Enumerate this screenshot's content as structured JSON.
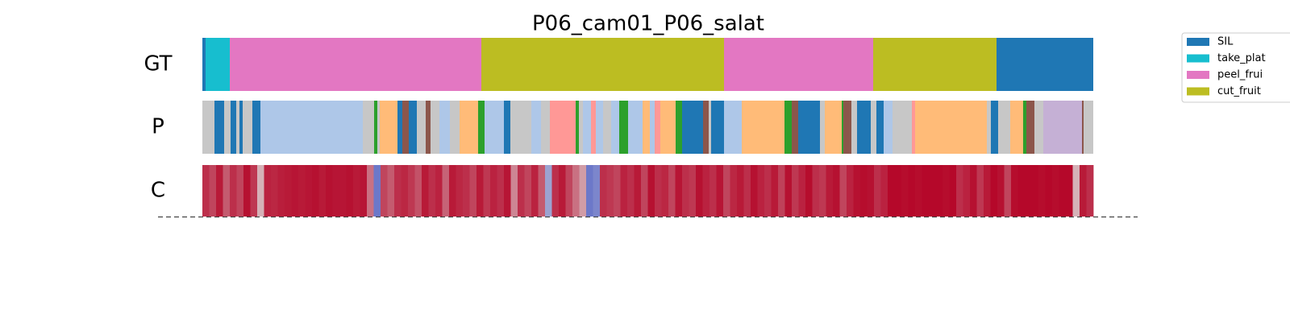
{
  "chart_data": {
    "type": "segmentation",
    "title": "P06_cam01_P06_salat",
    "xlim": [
      0,
      1105
    ],
    "colormap": [
      "#3b4cc0",
      "#dddddd",
      "#b40426"
    ],
    "legend": [
      {
        "name": "SIL",
        "color": "#1f77b4"
      },
      {
        "name": "take_plat",
        "color": "#17becf"
      },
      {
        "name": "peel_frui",
        "color": "#e377c2"
      },
      {
        "name": "cut_fruit",
        "color": "#bcbd22"
      }
    ],
    "rows": [
      {
        "label": "GT",
        "segments": [
          {
            "start": 0,
            "end": 4,
            "color": "#1f77b4"
          },
          {
            "start": 4,
            "end": 34,
            "color": "#17becf"
          },
          {
            "start": 34,
            "end": 346,
            "color": "#e377c2"
          },
          {
            "start": 346,
            "end": 647,
            "color": "#bcbd22"
          },
          {
            "start": 647,
            "end": 832,
            "color": "#e377c2"
          },
          {
            "start": 832,
            "end": 985,
            "color": "#bcbd22"
          },
          {
            "start": 985,
            "end": 1105,
            "color": "#1f77b4"
          }
        ]
      },
      {
        "label": "P",
        "segments": [
          {
            "start": 0,
            "end": 15,
            "color": "#c7c7c7"
          },
          {
            "start": 15,
            "end": 27,
            "color": "#1f77b4"
          },
          {
            "start": 27,
            "end": 35,
            "color": "#c7c7c7"
          },
          {
            "start": 35,
            "end": 42,
            "color": "#1f77b4"
          },
          {
            "start": 42,
            "end": 46,
            "color": "#c7c7c7"
          },
          {
            "start": 46,
            "end": 50,
            "color": "#1f77b4"
          },
          {
            "start": 50,
            "end": 62,
            "color": "#c7c7c7"
          },
          {
            "start": 62,
            "end": 72,
            "color": "#1f77b4"
          },
          {
            "start": 72,
            "end": 199,
            "color": "#aec7e8"
          },
          {
            "start": 199,
            "end": 213,
            "color": "#c7c7c7"
          },
          {
            "start": 213,
            "end": 217,
            "color": "#2ca02c"
          },
          {
            "start": 217,
            "end": 220,
            "color": "#c7c7c7"
          },
          {
            "start": 220,
            "end": 242,
            "color": "#ffbb78"
          },
          {
            "start": 242,
            "end": 248,
            "color": "#1f77b4"
          },
          {
            "start": 248,
            "end": 256,
            "color": "#8c564b"
          },
          {
            "start": 256,
            "end": 266,
            "color": "#1f77b4"
          },
          {
            "start": 266,
            "end": 277,
            "color": "#c7c7c7"
          },
          {
            "start": 277,
            "end": 283,
            "color": "#8c564b"
          },
          {
            "start": 283,
            "end": 294,
            "color": "#c7c7c7"
          },
          {
            "start": 294,
            "end": 307,
            "color": "#aec7e8"
          },
          {
            "start": 307,
            "end": 319,
            "color": "#c7c7c7"
          },
          {
            "start": 319,
            "end": 342,
            "color": "#ffbb78"
          },
          {
            "start": 342,
            "end": 350,
            "color": "#2ca02c"
          },
          {
            "start": 350,
            "end": 374,
            "color": "#aec7e8"
          },
          {
            "start": 374,
            "end": 382,
            "color": "#1f77b4"
          },
          {
            "start": 382,
            "end": 408,
            "color": "#c7c7c7"
          },
          {
            "start": 408,
            "end": 420,
            "color": "#aec7e8"
          },
          {
            "start": 420,
            "end": 431,
            "color": "#c7c7c7"
          },
          {
            "start": 431,
            "end": 463,
            "color": "#ff9896"
          },
          {
            "start": 463,
            "end": 467,
            "color": "#2ca02c"
          },
          {
            "start": 467,
            "end": 472,
            "color": "#c7c7c7"
          },
          {
            "start": 472,
            "end": 482,
            "color": "#aec7e8"
          },
          {
            "start": 482,
            "end": 488,
            "color": "#ff9896"
          },
          {
            "start": 488,
            "end": 497,
            "color": "#aec7e8"
          },
          {
            "start": 497,
            "end": 507,
            "color": "#c7c7c7"
          },
          {
            "start": 507,
            "end": 517,
            "color": "#aec7e8"
          },
          {
            "start": 517,
            "end": 528,
            "color": "#2ca02c"
          },
          {
            "start": 528,
            "end": 546,
            "color": "#aec7e8"
          },
          {
            "start": 546,
            "end": 555,
            "color": "#ffbb78"
          },
          {
            "start": 555,
            "end": 561,
            "color": "#aec7e8"
          },
          {
            "start": 561,
            "end": 568,
            "color": "#ff9896"
          },
          {
            "start": 568,
            "end": 587,
            "color": "#ffbb78"
          },
          {
            "start": 587,
            "end": 595,
            "color": "#2ca02c"
          },
          {
            "start": 595,
            "end": 621,
            "color": "#1f77b4"
          },
          {
            "start": 621,
            "end": 628,
            "color": "#8c564b"
          },
          {
            "start": 628,
            "end": 631,
            "color": "#c7c7c7"
          },
          {
            "start": 631,
            "end": 647,
            "color": "#1f77b4"
          },
          {
            "start": 647,
            "end": 669,
            "color": "#aec7e8"
          },
          {
            "start": 669,
            "end": 722,
            "color": "#ffbb78"
          },
          {
            "start": 722,
            "end": 731,
            "color": "#2ca02c"
          },
          {
            "start": 731,
            "end": 739,
            "color": "#8c564b"
          },
          {
            "start": 739,
            "end": 766,
            "color": "#1f77b4"
          },
          {
            "start": 766,
            "end": 772,
            "color": "#c7c7c7"
          },
          {
            "start": 772,
            "end": 793,
            "color": "#ffbb78"
          },
          {
            "start": 793,
            "end": 795,
            "color": "#2ca02c"
          },
          {
            "start": 795,
            "end": 805,
            "color": "#8c564b"
          },
          {
            "start": 805,
            "end": 812,
            "color": "#c7c7c7"
          },
          {
            "start": 812,
            "end": 829,
            "color": "#1f77b4"
          },
          {
            "start": 829,
            "end": 836,
            "color": "#c7c7c7"
          },
          {
            "start": 836,
            "end": 845,
            "color": "#1f77b4"
          },
          {
            "start": 845,
            "end": 856,
            "color": "#aec7e8"
          },
          {
            "start": 856,
            "end": 880,
            "color": "#c7c7c7"
          },
          {
            "start": 880,
            "end": 884,
            "color": "#ff9896"
          },
          {
            "start": 884,
            "end": 973,
            "color": "#ffbb78"
          },
          {
            "start": 973,
            "end": 978,
            "color": "#c7c7c7"
          },
          {
            "start": 978,
            "end": 987,
            "color": "#1f77b4"
          },
          {
            "start": 987,
            "end": 1002,
            "color": "#c7c7c7"
          },
          {
            "start": 1002,
            "end": 1018,
            "color": "#ffbb78"
          },
          {
            "start": 1018,
            "end": 1022,
            "color": "#2ca02c"
          },
          {
            "start": 1022,
            "end": 1032,
            "color": "#8c564b"
          },
          {
            "start": 1032,
            "end": 1043,
            "color": "#c7c7c7"
          },
          {
            "start": 1043,
            "end": 1091,
            "color": "#c5b0d5"
          },
          {
            "start": 1091,
            "end": 1093,
            "color": "#8c564b"
          },
          {
            "start": 1093,
            "end": 1105,
            "color": "#c7c7c7"
          }
        ]
      },
      {
        "label": "C",
        "values": [
          0.9,
          0.85,
          0.95,
          0.8,
          0.9,
          0.85,
          0.97,
          0.88,
          0.6,
          0.93,
          0.92,
          0.94,
          0.95,
          0.96,
          0.95,
          0.96,
          0.97,
          0.95,
          0.97,
          0.96,
          0.96,
          0.97,
          0.95,
          0.96,
          0.75,
          0.15,
          0.85,
          0.8,
          0.9,
          0.92,
          0.88,
          0.82,
          0.95,
          0.9,
          0.93,
          0.78,
          0.95,
          0.92,
          0.9,
          0.85,
          0.95,
          0.88,
          0.93,
          0.9,
          0.96,
          0.7,
          0.9,
          0.85,
          0.93,
          0.8,
          0.3,
          0.9,
          0.95,
          0.85,
          0.75,
          0.65,
          0.15,
          0.2,
          0.9,
          0.88,
          0.85,
          0.93,
          0.9,
          0.95,
          0.85,
          0.97,
          0.9,
          0.92,
          0.85,
          0.96,
          0.9,
          0.88,
          0.97,
          0.93,
          0.9,
          0.96,
          0.85,
          0.92,
          0.95,
          0.9,
          0.97,
          0.93,
          0.9,
          0.95,
          0.86,
          0.97,
          0.88,
          0.93,
          0.98,
          0.9,
          0.88,
          0.95,
          0.97,
          0.85,
          0.93,
          0.97,
          0.98,
          0.97,
          0.9,
          0.93,
          0.99,
          0.99,
          0.98,
          0.99,
          0.98,
          0.99,
          0.99,
          0.99,
          0.98,
          0.99,
          0.9,
          0.93,
          0.97,
          0.88,
          0.95,
          0.99,
          0.97,
          0.85,
          0.98,
          0.99,
          0.99,
          0.99,
          0.98,
          0.99,
          0.98,
          0.99,
          0.99,
          0.6,
          0.95,
          0.9
        ]
      }
    ]
  }
}
